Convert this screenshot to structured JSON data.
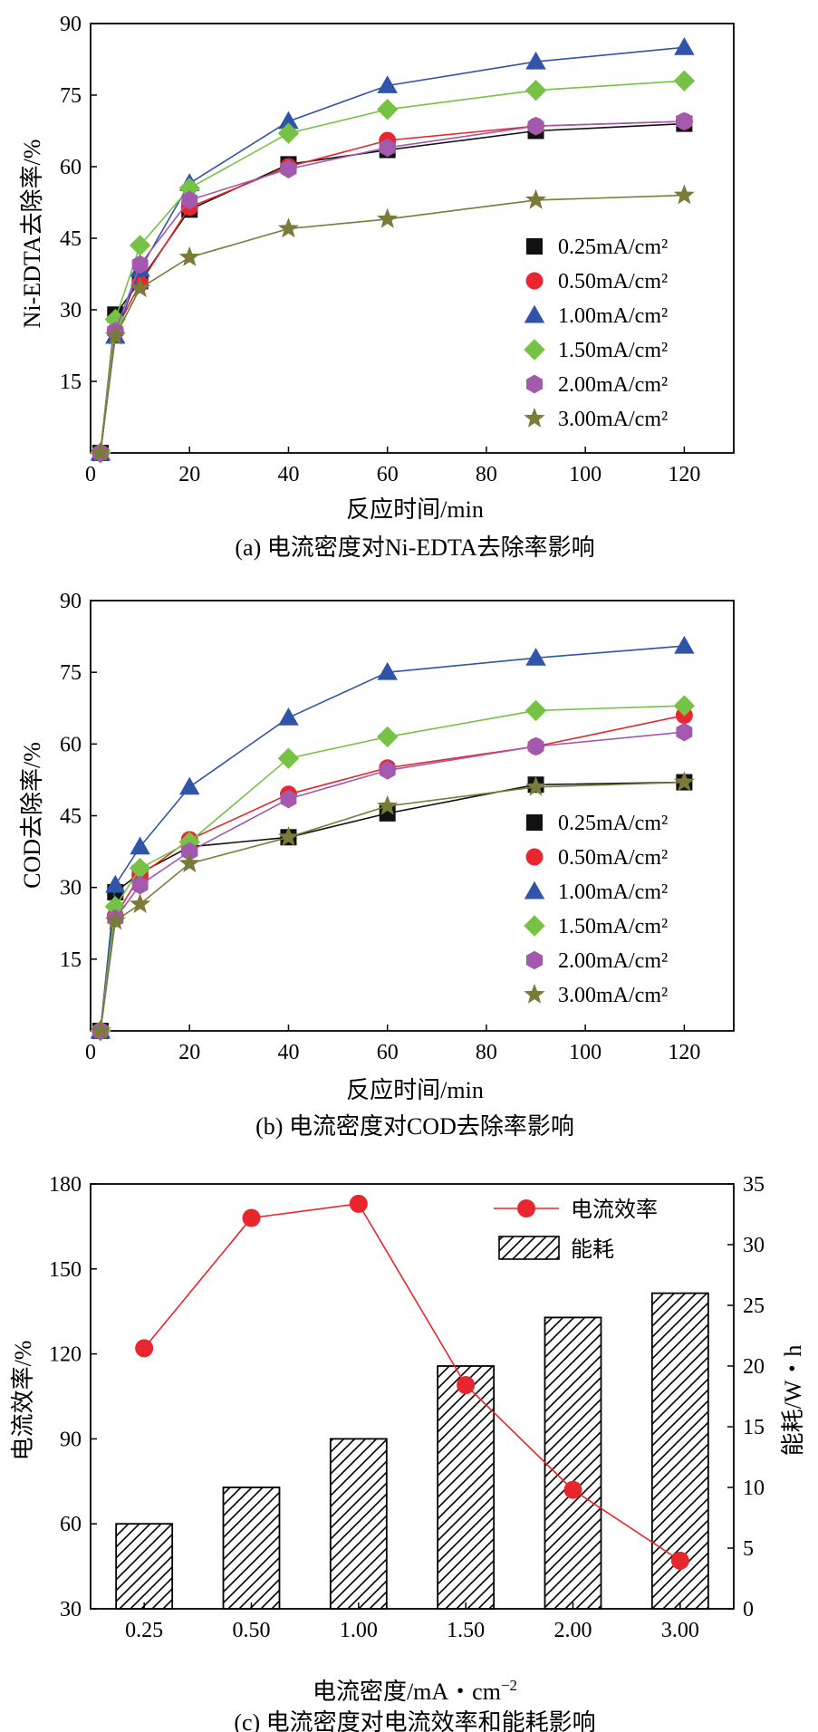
{
  "chart_data": [
    {
      "id": "a",
      "type": "line",
      "caption": "(a) 电流密度对Ni-EDTA去除率影响",
      "xlabel": "反应时间/min",
      "ylabel": "Ni-EDTA去除率/%",
      "xlim": [
        0,
        130
      ],
      "ylim": [
        0,
        90
      ],
      "xticks": [
        "0",
        "20",
        "40",
        "60",
        "80",
        "100",
        "120"
      ],
      "yticks": [
        "15",
        "30",
        "45",
        "60",
        "75",
        "90"
      ],
      "legend_position": "right-middle",
      "x": [
        2,
        5,
        10,
        20,
        40,
        60,
        90,
        120
      ],
      "series": [
        {
          "name": "0.25mA/cm²",
          "color": "#111111",
          "marker": "square",
          "values": [
            0,
            29,
            36,
            51,
            60.5,
            63.5,
            67.5,
            69
          ]
        },
        {
          "name": "0.50mA/cm²",
          "color": "#e8262d",
          "marker": "circle",
          "values": [
            0,
            25.5,
            35.5,
            51.5,
            60,
            65.5,
            68.5,
            69.5
          ]
        },
        {
          "name": "1.00mA/cm²",
          "color": "#2f54a8",
          "marker": "triangle",
          "values": [
            0,
            24.5,
            38.5,
            56.5,
            69.5,
            77,
            82,
            85
          ]
        },
        {
          "name": "1.50mA/cm²",
          "color": "#76c244",
          "marker": "diamond",
          "values": [
            0,
            28,
            43.5,
            55.5,
            67,
            72,
            76,
            78
          ]
        },
        {
          "name": "2.00mA/cm²",
          "color": "#a259ae",
          "marker": "hexagon",
          "values": [
            0,
            25.5,
            39.5,
            53,
            59.5,
            64,
            68.5,
            69.5
          ]
        },
        {
          "name": "3.00mA/cm²",
          "color": "#7a7a3a",
          "marker": "star",
          "values": [
            0,
            24.5,
            34.5,
            41,
            47,
            49,
            53,
            54
          ]
        }
      ]
    },
    {
      "id": "b",
      "type": "line",
      "caption": "(b) 电流密度对COD去除率影响",
      "xlabel": "反应时间/min",
      "ylabel": "COD去除率/%",
      "xlim": [
        0,
        130
      ],
      "ylim": [
        0,
        90
      ],
      "xticks": [
        "0",
        "20",
        "40",
        "60",
        "80",
        "100",
        "120"
      ],
      "yticks": [
        "15",
        "30",
        "45",
        "60",
        "75",
        "90"
      ],
      "legend_position": "lower-right",
      "x": [
        2,
        5,
        10,
        20,
        40,
        60,
        90,
        120
      ],
      "series": [
        {
          "name": "0.25mA/cm²",
          "color": "#111111",
          "marker": "square",
          "values": [
            0,
            29,
            33,
            38.5,
            40.5,
            45.5,
            51.5,
            52
          ]
        },
        {
          "name": "0.50mA/cm²",
          "color": "#e8262d",
          "marker": "circle",
          "values": [
            0,
            24,
            32.5,
            40,
            49.5,
            55,
            59.5,
            66
          ]
        },
        {
          "name": "1.00mA/cm²",
          "color": "#2f54a8",
          "marker": "triangle",
          "values": [
            0,
            30.5,
            38.5,
            51,
            65.5,
            75,
            78,
            80.5
          ]
        },
        {
          "name": "1.50mA/cm²",
          "color": "#76c244",
          "marker": "diamond",
          "values": [
            0,
            26,
            34,
            39.5,
            57,
            61.5,
            67,
            68
          ]
        },
        {
          "name": "2.00mA/cm²",
          "color": "#a259ae",
          "marker": "hexagon",
          "values": [
            0,
            23.5,
            30.5,
            37.5,
            48.5,
            54.5,
            59.5,
            62.5
          ]
        },
        {
          "name": "3.00mA/cm²",
          "color": "#7a7a3a",
          "marker": "star",
          "values": [
            0,
            23,
            26.5,
            35,
            40.5,
            47,
            51,
            52
          ]
        }
      ]
    },
    {
      "id": "c",
      "type": "bar+line",
      "caption": "(c) 电流密度对电流效率和能耗影响",
      "xlabel": "电流密度/mA・cm",
      "xlabel_superscript": "−2",
      "ylabel_left": "电流效率/%",
      "ylabel_right": "能耗/W・h",
      "categories": [
        "0.25",
        "0.50",
        "1.00",
        "1.50",
        "2.00",
        "3.00"
      ],
      "ylim_left": [
        30,
        180
      ],
      "ylim_right": [
        0,
        35
      ],
      "yticks_left": [
        "30",
        "60",
        "90",
        "120",
        "150",
        "180"
      ],
      "yticks_right": [
        "0",
        "5",
        "10",
        "15",
        "20",
        "25",
        "30",
        "35"
      ],
      "legend_position": "top-right",
      "line": {
        "name": "电流效率",
        "color": "#e8262d",
        "values": [
          122,
          168,
          173,
          109,
          72,
          47
        ]
      },
      "bars": {
        "name": "能耗",
        "values": [
          7,
          10,
          14,
          20,
          24,
          26
        ]
      }
    }
  ]
}
